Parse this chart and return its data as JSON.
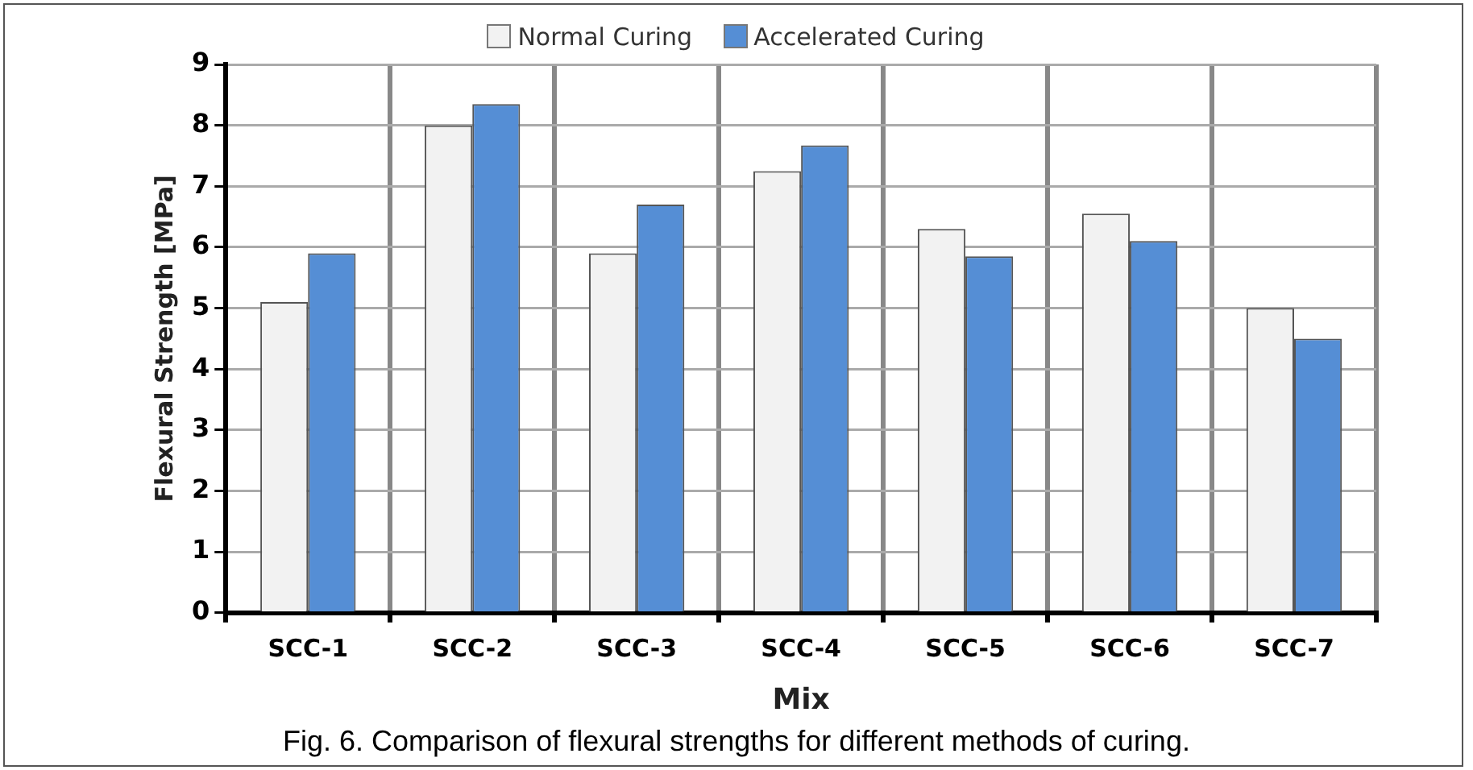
{
  "chart_data": {
    "type": "bar",
    "categories": [
      "SCC-1",
      "SCC-2",
      "SCC-3",
      "SCC-4",
      "SCC-5",
      "SCC-6",
      "SCC-7"
    ],
    "series": [
      {
        "name": "Normal Curing",
        "color": "#f2f2f2",
        "values": [
          5.1,
          8.0,
          5.9,
          7.25,
          6.3,
          6.55,
          5.0
        ]
      },
      {
        "name": "Accelerated Curing",
        "color": "#558ed5",
        "values": [
          5.9,
          8.35,
          6.7,
          7.67,
          5.85,
          6.1,
          4.5
        ]
      }
    ],
    "xlabel": "Mix",
    "ylabel": "Flexural Strength [MPa]",
    "ylim": [
      0,
      9
    ],
    "yticks": [
      0,
      1,
      2,
      3,
      4,
      5,
      6,
      7,
      8,
      9
    ],
    "grid": true,
    "legend": "top",
    "annotations": [
      "Fig. 6.  Comparison of flexural strengths for different methods of curing."
    ]
  }
}
